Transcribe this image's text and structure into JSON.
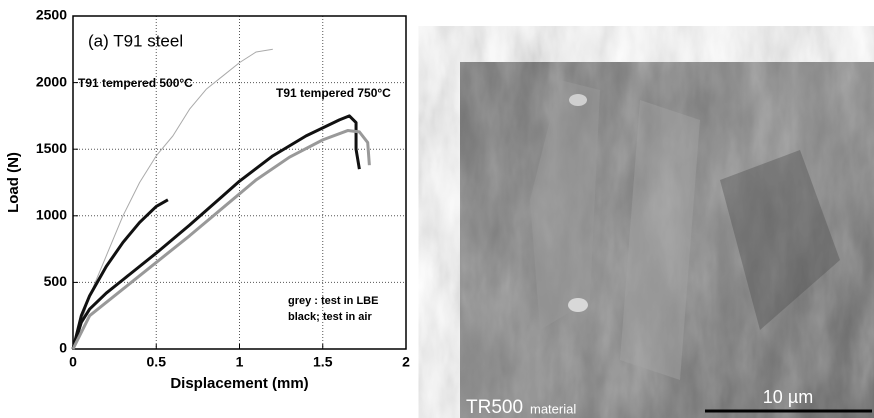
{
  "chart_data": {
    "type": "line",
    "annotations": [
      "(a) T91 steel",
      "T91 tempered 500°C",
      "T91 tempered 750°C",
      "grey : test in LBE",
      "black; test in air"
    ],
    "x_label": "Displacement (mm)",
    "y_label": "Load (N)",
    "xlim": [
      0,
      2
    ],
    "xticks": [
      0,
      0.5,
      1,
      1.5,
      2
    ],
    "ylim": [
      0,
      2500
    ],
    "yticks": [
      0,
      500,
      1000,
      1500,
      2000,
      2500
    ],
    "grid": true,
    "series": [
      {
        "color": "#aaaaaa",
        "x": [
          0,
          0.05,
          0.1,
          0.2,
          0.3,
          0.4,
          0.5,
          0.6,
          0.7,
          0.8,
          0.9,
          1.0,
          1.1,
          1.2
        ],
        "values": [
          0,
          200,
          400,
          700,
          1000,
          1250,
          1450,
          1600,
          1800,
          1950,
          2050,
          2150,
          2230,
          2250
        ]
      },
      {
        "color": "#111111",
        "x": [
          0,
          0.05,
          0.1,
          0.2,
          0.3,
          0.4,
          0.5,
          0.57
        ],
        "values": [
          0,
          250,
          400,
          620,
          800,
          950,
          1070,
          1120
        ]
      },
      {
        "color": "#111111",
        "x": [
          0,
          0.05,
          0.1,
          0.2,
          0.3,
          0.5,
          0.7,
          0.9,
          1.0,
          1.2,
          1.4,
          1.6,
          1.66,
          1.7,
          1.7,
          1.72
        ],
        "values": [
          0,
          200,
          300,
          420,
          520,
          720,
          930,
          1150,
          1260,
          1450,
          1600,
          1720,
          1750,
          1700,
          1500,
          1350
        ]
      },
      {
        "color": "#999999",
        "x": [
          0,
          0.1,
          0.3,
          0.5,
          0.7,
          0.9,
          1.1,
          1.3,
          1.5,
          1.65,
          1.72,
          1.77,
          1.78
        ],
        "values": [
          0,
          250,
          450,
          650,
          850,
          1060,
          1270,
          1440,
          1570,
          1640,
          1630,
          1550,
          1380
        ]
      }
    ]
  },
  "image": {
    "caption_main": "TR500",
    "caption_sub": "material",
    "scale_label": "10 µm"
  }
}
